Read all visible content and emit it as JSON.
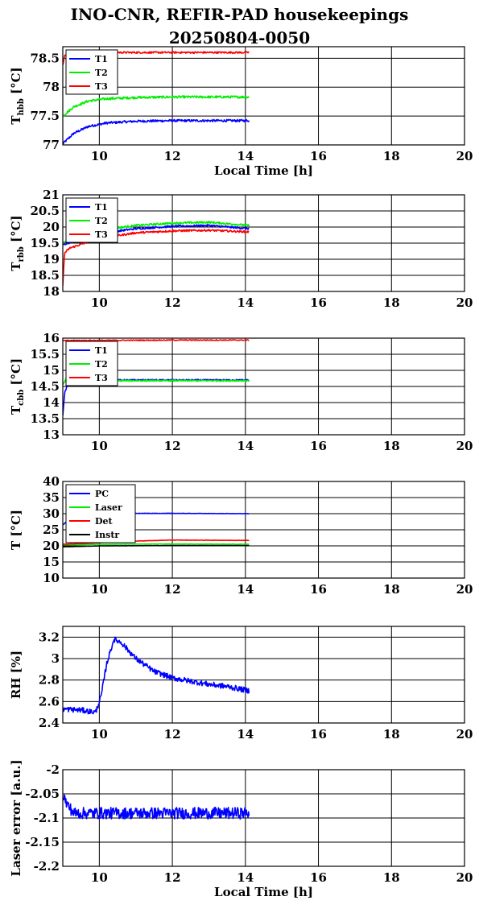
{
  "figure": {
    "title_line1": "INO-CNR, REFIR-PAD housekeepings",
    "title_line2": "20250804-0050"
  },
  "colors": {
    "blue": "#0000ff",
    "green": "#00ee00",
    "red": "#ff0000",
    "black": "#000000"
  },
  "chart_data": [
    {
      "type": "line",
      "ylabel_main": "T",
      "ylabel_sub": "hbb",
      "ylabel_unit": " [°C]",
      "xlabel": "Local Time [h]",
      "xlim": [
        9,
        20
      ],
      "ylim": [
        77,
        78.7
      ],
      "xticks": [
        10,
        12,
        14,
        16,
        18,
        20
      ],
      "yticks": [
        77,
        77.5,
        78,
        78.5
      ],
      "ytick_labels": [
        "77",
        "77.5",
        "78",
        "78.5"
      ],
      "grid": true,
      "legend_position": "top-left",
      "series": [
        {
          "name": "T1",
          "color": "#0000ff",
          "x": [
            9.0,
            9.3,
            9.7,
            10.2,
            11.0,
            12.0,
            13.0,
            14.1
          ],
          "y": [
            77.02,
            77.2,
            77.32,
            77.38,
            77.41,
            77.42,
            77.42,
            77.42
          ],
          "noise": 0.02
        },
        {
          "name": "T2",
          "color": "#00ee00",
          "x": [
            9.0,
            9.3,
            9.7,
            10.2,
            11.0,
            12.0,
            13.0,
            14.1
          ],
          "y": [
            77.5,
            77.66,
            77.76,
            77.8,
            77.82,
            77.83,
            77.83,
            77.83
          ],
          "noise": 0.02
        },
        {
          "name": "T3",
          "color": "#ff0000",
          "x": [
            9.0,
            9.05,
            9.3,
            10.0,
            12.0,
            14.1
          ],
          "y": [
            78.38,
            78.55,
            78.6,
            78.6,
            78.6,
            78.6
          ],
          "noise": 0.015
        }
      ]
    },
    {
      "type": "line",
      "ylabel_main": "T",
      "ylabel_sub": "rbb",
      "ylabel_unit": " [°C]",
      "xlabel": "",
      "xlim": [
        9,
        20
      ],
      "ylim": [
        18,
        21
      ],
      "xticks": [
        10,
        12,
        14,
        16,
        18,
        20
      ],
      "yticks": [
        18,
        18.5,
        19,
        19.5,
        20,
        20.5,
        21
      ],
      "ytick_labels": [
        "18",
        "18.5",
        "19",
        "19.5",
        "20",
        "20.5",
        "21"
      ],
      "grid": true,
      "legend_position": "top-left",
      "series": [
        {
          "name": "T1",
          "color": "#0000ff",
          "x": [
            9.0,
            9.3,
            10.0,
            11.0,
            12.0,
            13.0,
            14.1
          ],
          "y": [
            19.45,
            19.55,
            19.8,
            19.95,
            20.02,
            20.05,
            19.95
          ],
          "noise": 0.03
        },
        {
          "name": "T2",
          "color": "#00ee00",
          "x": [
            9.0,
            9.3,
            10.0,
            11.0,
            12.0,
            13.0,
            14.1
          ],
          "y": [
            19.5,
            19.6,
            19.9,
            20.05,
            20.12,
            20.15,
            20.05
          ],
          "noise": 0.03
        },
        {
          "name": "T3",
          "color": "#ff0000",
          "x": [
            9.0,
            9.05,
            9.2,
            9.6,
            10.0,
            11.0,
            12.0,
            13.0,
            14.1
          ],
          "y": [
            18.2,
            19.2,
            19.35,
            19.5,
            19.65,
            19.82,
            19.88,
            19.9,
            19.85
          ],
          "noise": 0.03
        }
      ]
    },
    {
      "type": "line",
      "ylabel_main": "T",
      "ylabel_sub": "cbb",
      "ylabel_unit": " [°C]",
      "xlabel": "",
      "xlim": [
        9,
        20
      ],
      "ylim": [
        13,
        16
      ],
      "xticks": [
        10,
        12,
        14,
        16,
        18,
        20
      ],
      "yticks": [
        13,
        13.5,
        14,
        14.5,
        15,
        15.5,
        16
      ],
      "ytick_labels": [
        "13",
        "13.5",
        "14",
        "14.5",
        "15",
        "15.5",
        "16"
      ],
      "grid": true,
      "legend_position": "top-left",
      "series": [
        {
          "name": "T1",
          "color": "#0000ff",
          "x": [
            9.0,
            9.05,
            9.15,
            9.4,
            10.0,
            12.0,
            14.1
          ],
          "y": [
            13.6,
            14.3,
            14.6,
            14.7,
            14.7,
            14.7,
            14.7
          ],
          "noise": 0.02
        },
        {
          "name": "T2",
          "color": "#00ee00",
          "x": [
            9.0,
            9.1,
            9.4,
            10.0,
            12.0,
            14.1
          ],
          "y": [
            14.55,
            14.75,
            14.7,
            14.68,
            14.68,
            14.68
          ],
          "noise": 0.02
        },
        {
          "name": "T3",
          "color": "#ff0000",
          "x": [
            9.0,
            9.3,
            10.0,
            12.0,
            14.1
          ],
          "y": [
            15.92,
            15.93,
            15.93,
            15.94,
            15.94
          ],
          "noise": 0.015
        }
      ]
    },
    {
      "type": "line",
      "ylabel_main": "T [°C]",
      "ylabel_sub": "",
      "ylabel_unit": "",
      "xlabel": "",
      "xlim": [
        9,
        20
      ],
      "ylim": [
        10,
        40
      ],
      "xticks": [
        10,
        12,
        14,
        16,
        18,
        20
      ],
      "yticks": [
        10,
        15,
        20,
        25,
        30,
        35,
        40
      ],
      "ytick_labels": [
        "10",
        "15",
        "20",
        "25",
        "30",
        "35",
        "40"
      ],
      "grid": true,
      "legend_position": "top-left",
      "series": [
        {
          "name": "PC",
          "color": "#0000ff",
          "x": [
            9.0,
            9.2,
            9.5,
            10.0,
            12.0,
            14.1
          ],
          "y": [
            26.5,
            28.5,
            29.8,
            30.1,
            30.1,
            30.0
          ],
          "noise": 0.05
        },
        {
          "name": "Laser",
          "color": "#00ee00",
          "x": [
            9.0,
            10.0,
            12.0,
            14.1
          ],
          "y": [
            20.3,
            20.5,
            20.6,
            20.5
          ],
          "noise": 0.05
        },
        {
          "name": "Det",
          "color": "#ff0000",
          "x": [
            9.0,
            10.0,
            11.0,
            12.0,
            14.1
          ],
          "y": [
            20.5,
            21.0,
            21.5,
            21.8,
            21.7
          ],
          "noise": 0.05
        },
        {
          "name": "Instr",
          "color": "#000000",
          "x": [
            9.0,
            10.0,
            12.0,
            14.1
          ],
          "y": [
            19.7,
            20.0,
            20.1,
            20.1
          ],
          "noise": 0.03
        }
      ]
    },
    {
      "type": "line",
      "ylabel_main": "RH [%]",
      "ylabel_sub": "",
      "ylabel_unit": "",
      "xlabel": "",
      "xlim": [
        9,
        20
      ],
      "ylim": [
        2.4,
        3.3
      ],
      "xticks": [
        10,
        12,
        14,
        16,
        18,
        20
      ],
      "yticks": [
        2.4,
        2.6,
        2.8,
        3.0,
        3.2
      ],
      "ytick_labels": [
        "2.4",
        "2.6",
        "2.8",
        "3",
        "3.2"
      ],
      "grid": true,
      "legend_position": "none",
      "series": [
        {
          "name": "",
          "color": "#0000ff",
          "x": [
            9.0,
            9.5,
            9.9,
            10.05,
            10.2,
            10.4,
            10.6,
            11.0,
            11.5,
            12.0,
            12.5,
            13.0,
            13.5,
            14.1
          ],
          "y": [
            2.53,
            2.52,
            2.5,
            2.65,
            2.95,
            3.18,
            3.15,
            3.0,
            2.88,
            2.82,
            2.79,
            2.76,
            2.74,
            2.7
          ],
          "noise": 0.025
        }
      ]
    },
    {
      "type": "line",
      "ylabel_main": "Laser error [a.u.]",
      "ylabel_sub": "",
      "ylabel_unit": "",
      "xlabel": "Local Time [h]",
      "xlim": [
        9,
        20
      ],
      "ylim": [
        -2.2,
        -2.0
      ],
      "xticks": [
        10,
        12,
        14,
        16,
        18,
        20
      ],
      "yticks": [
        -2.2,
        -2.15,
        -2.1,
        -2.05,
        -2.0
      ],
      "ytick_labels": [
        "-2.2",
        "-2.15",
        "-2.1",
        "-2.05",
        "-2"
      ],
      "grid": true,
      "legend_position": "none",
      "series": [
        {
          "name": "",
          "color": "#0000ff",
          "x": [
            9.0,
            9.1,
            9.3,
            10.0,
            12.0,
            14.1
          ],
          "y": [
            -2.05,
            -2.07,
            -2.09,
            -2.09,
            -2.09,
            -2.09
          ],
          "noise": 0.012
        }
      ]
    }
  ]
}
